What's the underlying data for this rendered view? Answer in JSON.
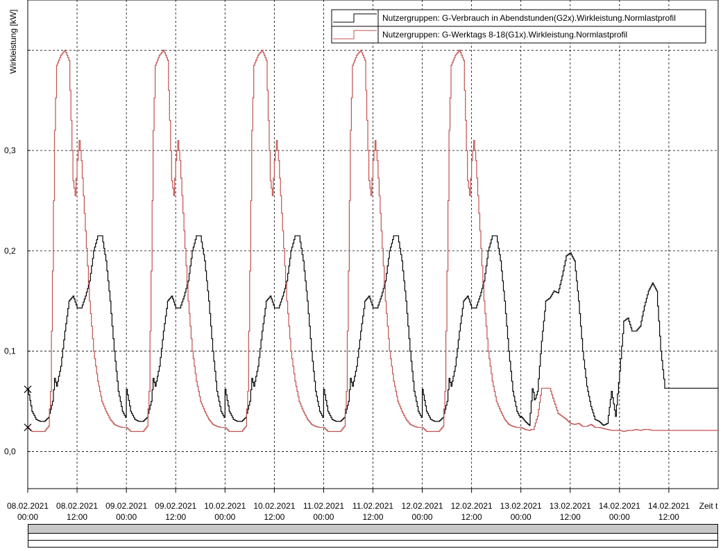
{
  "chart_data": {
    "type": "line",
    "ylabel": "Wirkleistung [kW]",
    "xlabel": "Zeit t",
    "ylim": [
      -0.037,
      0.45
    ],
    "y_ticks": [
      0.0,
      0.1,
      0.2,
      0.3,
      0.4
    ],
    "y_tick_labels": [
      "0,0",
      "0,1",
      "0,2",
      "0,3",
      ""
    ],
    "x_unit": "hours since 08.02.2021 00:00",
    "xlim": [
      0,
      168
    ],
    "x_ticks": [
      0,
      12,
      24,
      36,
      48,
      60,
      72,
      84,
      96,
      108,
      120,
      132,
      144,
      156
    ],
    "x_tick_labels": [
      [
        "08.02.2021",
        "00:00"
      ],
      [
        "08.02.2021",
        "12:00"
      ],
      [
        "09.02.2021",
        "00:00"
      ],
      [
        "09.02.2021",
        "12:00"
      ],
      [
        "10.02.2021",
        "00:00"
      ],
      [
        "10.02.2021",
        "12:00"
      ],
      [
        "11.02.2021",
        "00:00"
      ],
      [
        "11.02.2021",
        "12:00"
      ],
      [
        "12.02.2021",
        "00:00"
      ],
      [
        "12.02.2021",
        "12:00"
      ],
      [
        "13.02.2021",
        "00:00"
      ],
      [
        "13.02.2021",
        "12:00"
      ],
      [
        "14.02.2021",
        "00:00"
      ],
      [
        "14.02.2021",
        "12:00"
      ]
    ],
    "grid": true,
    "legend_position": "top-right",
    "series": [
      {
        "name": "Nutzergruppen: G-Verbrauch in Abendstunden(G2x).Wirkleistung.Normlastprofil",
        "color": "#000000",
        "weekday_profile": [
          [
            0,
            0.062
          ],
          [
            1,
            0.04
          ],
          [
            2,
            0.032
          ],
          [
            3,
            0.03
          ],
          [
            4,
            0.03
          ],
          [
            5,
            0.034
          ],
          [
            6,
            0.05
          ],
          [
            6.5,
            0.073
          ],
          [
            7,
            0.065
          ],
          [
            8,
            0.085
          ],
          [
            9,
            0.12
          ],
          [
            10,
            0.15
          ],
          [
            11,
            0.155
          ],
          [
            12,
            0.143
          ],
          [
            13,
            0.143
          ],
          [
            14,
            0.155
          ],
          [
            15,
            0.17
          ],
          [
            16,
            0.2
          ],
          [
            17,
            0.215
          ],
          [
            18,
            0.215
          ],
          [
            19,
            0.19
          ],
          [
            20,
            0.15
          ],
          [
            21,
            0.1
          ],
          [
            22,
            0.06
          ],
          [
            23,
            0.04
          ],
          [
            24,
            0.032
          ]
        ],
        "saturday_profile": [
          [
            0,
            0.035
          ],
          [
            1,
            0.03
          ],
          [
            2,
            0.026
          ],
          [
            2.8,
            0.065
          ],
          [
            3.3,
            0.05
          ],
          [
            4,
            0.06
          ],
          [
            5,
            0.11
          ],
          [
            6,
            0.15
          ],
          [
            7,
            0.153
          ],
          [
            8,
            0.16
          ],
          [
            9,
            0.158
          ],
          [
            10,
            0.175
          ],
          [
            11,
            0.195
          ],
          [
            12,
            0.198
          ],
          [
            13,
            0.19
          ],
          [
            14,
            0.15
          ],
          [
            15,
            0.1
          ],
          [
            16,
            0.065
          ],
          [
            17,
            0.045
          ],
          [
            18,
            0.032
          ],
          [
            19,
            0.03
          ],
          [
            20,
            0.026
          ],
          [
            21,
            0.028
          ],
          [
            22,
            0.06
          ],
          [
            23,
            0.035
          ],
          [
            24,
            0.08
          ]
        ],
        "sunday_profile": [
          [
            0,
            0.08
          ],
          [
            1,
            0.13
          ],
          [
            2,
            0.133
          ],
          [
            3,
            0.12
          ],
          [
            4,
            0.12
          ],
          [
            5,
            0.125
          ],
          [
            6,
            0.145
          ],
          [
            7,
            0.16
          ],
          [
            8,
            0.168
          ],
          [
            9,
            0.16
          ],
          [
            10,
            0.1
          ],
          [
            11,
            0.063
          ]
        ]
      },
      {
        "name": "Nutzergruppen: G-Werktags 8-18(G1x).Wirkleistung.Normlastprofil",
        "color": "#c0504d",
        "weekday_profile": [
          [
            0,
            0.024
          ],
          [
            1,
            0.02
          ],
          [
            2,
            0.02
          ],
          [
            3,
            0.02
          ],
          [
            4,
            0.02
          ],
          [
            5,
            0.025
          ],
          [
            5.5,
            0.06
          ],
          [
            6,
            0.18
          ],
          [
            6.5,
            0.32
          ],
          [
            7,
            0.385
          ],
          [
            8,
            0.395
          ],
          [
            9,
            0.4
          ],
          [
            10,
            0.39
          ],
          [
            10.5,
            0.33
          ],
          [
            11,
            0.27
          ],
          [
            11.5,
            0.255
          ],
          [
            12,
            0.29
          ],
          [
            12.5,
            0.31
          ],
          [
            13,
            0.29
          ],
          [
            14,
            0.22
          ],
          [
            15,
            0.15
          ],
          [
            16,
            0.1
          ],
          [
            17,
            0.07
          ],
          [
            18,
            0.05
          ],
          [
            19,
            0.04
          ],
          [
            20,
            0.032
          ],
          [
            21,
            0.027
          ],
          [
            22,
            0.025
          ],
          [
            23,
            0.024
          ],
          [
            24,
            0.024
          ]
        ],
        "saturday_profile": [
          [
            0,
            0.024
          ],
          [
            1,
            0.022
          ],
          [
            2,
            0.021
          ],
          [
            2.5,
            0.022
          ],
          [
            3,
            0.022
          ],
          [
            4,
            0.035
          ],
          [
            5,
            0.063
          ],
          [
            6,
            0.063
          ],
          [
            7,
            0.063
          ],
          [
            8,
            0.05
          ],
          [
            9,
            0.038
          ],
          [
            10,
            0.035
          ],
          [
            11,
            0.032
          ],
          [
            12,
            0.028
          ],
          [
            13,
            0.027
          ],
          [
            14,
            0.028
          ],
          [
            15,
            0.025
          ],
          [
            16,
            0.025
          ],
          [
            17,
            0.027
          ],
          [
            18,
            0.024
          ],
          [
            19,
            0.024
          ],
          [
            20,
            0.023
          ],
          [
            21,
            0.022
          ],
          [
            22,
            0.021
          ],
          [
            23,
            0.021
          ],
          [
            24,
            0.021
          ]
        ],
        "sunday_profile": [
          [
            0,
            0.021
          ],
          [
            1,
            0.02
          ],
          [
            2,
            0.021
          ],
          [
            3,
            0.021
          ],
          [
            4,
            0.022
          ],
          [
            5,
            0.021
          ],
          [
            6,
            0.022
          ],
          [
            7,
            0.022
          ],
          [
            8,
            0.021
          ],
          [
            9,
            0.021
          ],
          [
            10,
            0.021
          ],
          [
            11,
            0.021
          ]
        ]
      }
    ]
  }
}
